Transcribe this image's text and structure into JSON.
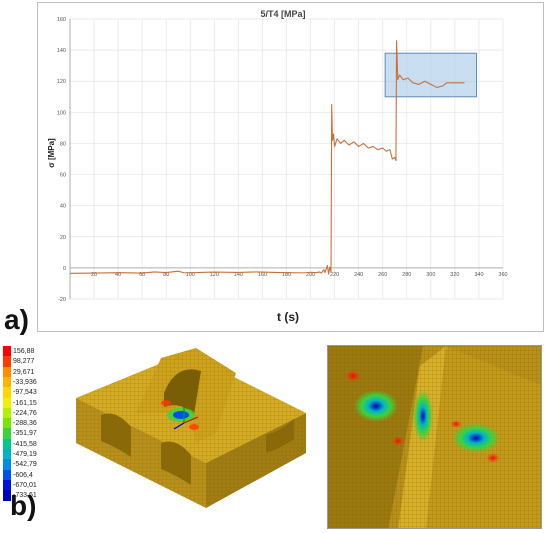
{
  "panel_labels": {
    "a": "a)",
    "b": "b)"
  },
  "chart_data": {
    "type": "line",
    "title": "5/T4 [MPa]",
    "xlabel": "t (s)",
    "ylabel": "σ [MPa]",
    "xlim": [
      0,
      360
    ],
    "ylim": [
      -20,
      160
    ],
    "x_ticks": [
      20,
      40,
      60,
      80,
      100,
      120,
      140,
      160,
      180,
      200,
      220,
      240,
      260,
      280,
      300,
      320,
      340,
      360
    ],
    "y_ticks": [
      -20,
      0,
      20,
      40,
      60,
      80,
      100,
      120,
      140,
      160
    ],
    "grid": "vertical-and-horizontal",
    "series_color": "#c8703a",
    "highlight_box": {
      "x_range": [
        262,
        338
      ],
      "y_range": [
        110,
        138
      ],
      "color": "#9dc3e6"
    },
    "points": [
      [
        0,
        -3.5
      ],
      [
        20,
        -3.3
      ],
      [
        40,
        -3.1
      ],
      [
        60,
        -3.3
      ],
      [
        70,
        -2.6
      ],
      [
        80,
        -3.0
      ],
      [
        90,
        -2.1
      ],
      [
        95,
        -3.2
      ],
      [
        120,
        -2.7
      ],
      [
        140,
        -2.9
      ],
      [
        155,
        -2.6
      ],
      [
        175,
        -3.0
      ],
      [
        195,
        -3.2
      ],
      [
        200,
        -2.8
      ],
      [
        205,
        -3.1
      ],
      [
        207,
        -2.6
      ],
      [
        209,
        -3.3
      ],
      [
        211,
        -1.2
      ],
      [
        212,
        -3.0
      ],
      [
        214,
        1.5
      ],
      [
        215,
        -4.0
      ],
      [
        216,
        0.5
      ],
      [
        217,
        -2.5
      ],
      [
        217.6,
        105
      ],
      [
        218.2,
        82
      ],
      [
        219,
        86
      ],
      [
        220,
        78
      ],
      [
        222,
        83
      ],
      [
        225,
        80
      ],
      [
        228,
        82
      ],
      [
        232,
        79
      ],
      [
        236,
        81
      ],
      [
        240,
        78
      ],
      [
        244,
        80
      ],
      [
        248,
        77
      ],
      [
        252,
        78
      ],
      [
        256,
        76
      ],
      [
        260,
        77
      ],
      [
        263,
        75
      ],
      [
        266,
        76
      ],
      [
        268,
        70
      ],
      [
        270,
        71
      ],
      [
        271,
        69
      ],
      [
        271.5,
        146
      ],
      [
        272.5,
        121
      ],
      [
        274,
        124
      ],
      [
        277,
        121
      ],
      [
        281,
        122
      ],
      [
        285,
        119
      ],
      [
        290,
        118
      ],
      [
        295,
        120
      ],
      [
        300,
        118
      ],
      [
        305,
        116
      ],
      [
        310,
        117
      ],
      [
        313,
        119
      ],
      [
        320,
        119
      ],
      [
        328,
        119
      ]
    ]
  },
  "fea": {
    "legend_values": [
      "156,88",
      "98,277",
      "29,671",
      "-33,936",
      "-97,543",
      "-161,15",
      "-224,76",
      "-288,36",
      "-351,97",
      "-415,58",
      "-479,19",
      "-542,79",
      "-606,4",
      "-670,01",
      "-733,61"
    ],
    "legend_colors": [
      "#ff0000",
      "#ff3a00",
      "#ff8c00",
      "#ffb400",
      "#ffd700",
      "#f0f000",
      "#b4f000",
      "#78e600",
      "#3cd23c",
      "#00c88c",
      "#00b4c8",
      "#008ce6",
      "#0050f0",
      "#0014dc",
      "#0000b4"
    ],
    "model_color": "#c8a21e"
  }
}
